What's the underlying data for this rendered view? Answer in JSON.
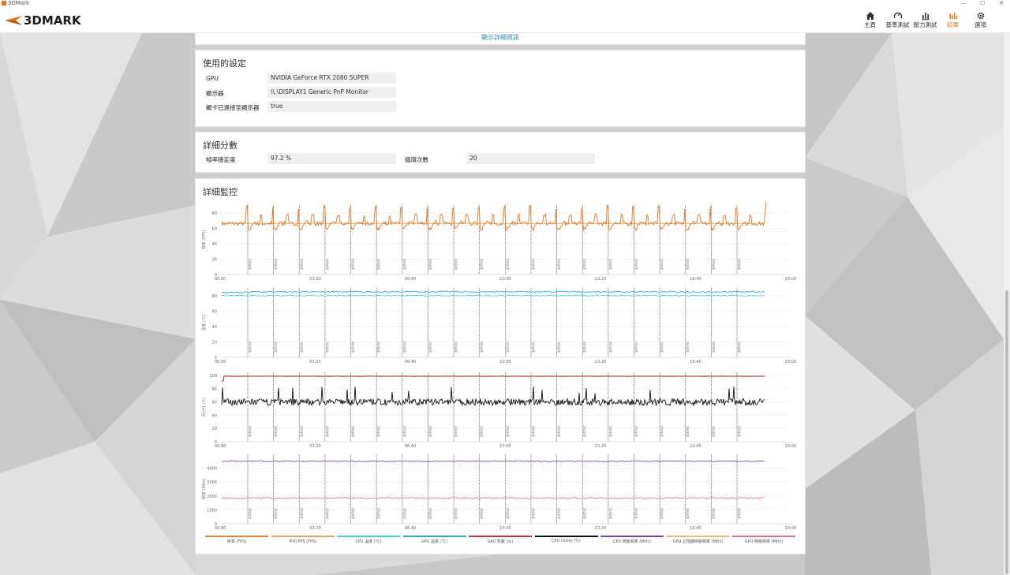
{
  "window": {
    "title": "3DMark"
  },
  "app": {
    "logo_text": "3DMARK"
  },
  "nav": {
    "items": [
      {
        "label": "主頁",
        "icon": "home-icon"
      },
      {
        "label": "基準測試",
        "icon": "benchmark-gauge-icon"
      },
      {
        "label": "壓力測試",
        "icon": "stress-bars-icon"
      },
      {
        "label": "結果",
        "icon": "results-chart-icon",
        "active": true
      },
      {
        "label": "選項",
        "icon": "gear-icon"
      }
    ]
  },
  "top_link": "顯示詳細資訊",
  "settings": {
    "title": "使用的設定",
    "rows": [
      {
        "label": "GPU",
        "value": "NVIDIA GeForce RTX 2080 SUPER"
      },
      {
        "label": "顯示器",
        "value": "\\\\.\\DISPLAY1 Generic PnP Monitor"
      },
      {
        "label": "顯卡已連接至顯示器",
        "value": "true"
      }
    ]
  },
  "scores": {
    "title": "詳細分數",
    "frame_stability_label": "幀率穩定度",
    "frame_stability_value": "97.2 %",
    "loops_label": "循環次數",
    "loops_value": "20"
  },
  "monitoring": {
    "title": "詳細監控",
    "marker_label": "循環測試",
    "colors": {
      "fps": "#e8802a",
      "fps_avg": "#f0a060",
      "cpu_temp": "#45d6c8",
      "gpu_temp": "#2ba8d6",
      "gpu_load": "#c0363b",
      "cpu_util": "#111111",
      "cpu_clock": "#7b45a8",
      "gpu_mem_clock": "#e5c070",
      "gpu_clock": "#e0708a"
    },
    "legend": [
      {
        "label": "幀率 (FPS)",
        "color": "#e8802a"
      },
      {
        "label": "平均 FPS (FPS)",
        "color": "#f0a060"
      },
      {
        "label": "CPU 溫度 (°C)",
        "color": "#45d6c8"
      },
      {
        "label": "GPU 溫度 (°C)",
        "color": "#2ba8d6"
      },
      {
        "label": "GPU 負載 (%)",
        "color": "#c0363b"
      },
      {
        "label": "CPU Utility (%)",
        "color": "#111111"
      },
      {
        "label": "CPU 時脈頻率 (MHz)",
        "color": "#7b45a8"
      },
      {
        "label": "GPU 記憶體時脈頻率 (MHz)",
        "color": "#e5c070"
      },
      {
        "label": "GPU 時脈頻率 (MHz)",
        "color": "#e0708a"
      }
    ]
  },
  "chart_data": [
    {
      "type": "line",
      "ylabel": "幀率 (FPS)",
      "ylim": [
        0,
        90
      ],
      "yticks": [
        0,
        20,
        40,
        60,
        80
      ],
      "xticks": [
        "00:00",
        "03:20",
        "06:40",
        "10:00",
        "13:20",
        "16:40",
        "20:00"
      ],
      "xlim": [
        "00:00",
        "20:00"
      ],
      "loop_markers": 20,
      "series": [
        {
          "name": "幀率 (FPS)",
          "baseline": 68,
          "range": [
            57,
            92
          ]
        },
        {
          "name": "平均 FPS (FPS)",
          "values_constant": 66
        }
      ]
    },
    {
      "type": "line",
      "ylabel": "溫度 (°C)",
      "ylim": [
        0,
        90
      ],
      "yticks": [
        0,
        20,
        40,
        60,
        80
      ],
      "xticks": [
        "00:00",
        "03:20",
        "06:40",
        "10:00",
        "13:20",
        "16:40",
        "20:00"
      ],
      "xlim": [
        "00:00",
        "20:00"
      ],
      "loop_markers": 20,
      "series": [
        {
          "name": "CPU 溫度 (°C)",
          "approx": 80
        },
        {
          "name": "GPU 溫度 (°C)",
          "approx": 85
        }
      ]
    },
    {
      "type": "line",
      "ylabel": "百分比 (%)",
      "ylim": [
        0,
        105
      ],
      "yticks": [
        0,
        20,
        40,
        60,
        80,
        100
      ],
      "xticks": [
        "00:00",
        "03:20",
        "06:40",
        "10:00",
        "13:20",
        "16:40",
        "20:00"
      ],
      "xlim": [
        "00:00",
        "20:00"
      ],
      "loop_markers": 20,
      "series": [
        {
          "name": "GPU 負載 (%)",
          "approx": 99
        },
        {
          "name": "CPU Utility (%)",
          "baseline": 60,
          "range": [
            52,
            85
          ]
        }
      ]
    },
    {
      "type": "line",
      "ylabel": "頻率 (MHz)",
      "ylim": [
        0,
        5000
      ],
      "yticks": [
        0,
        1000,
        2000,
        3000,
        4000
      ],
      "xticks": [
        "00:00",
        "03:20",
        "06:40",
        "10:00",
        "13:20",
        "16:40",
        "20:00"
      ],
      "xlim": [
        "00:00",
        "20:00"
      ],
      "loop_markers": 20,
      "series": [
        {
          "name": "CPU 時脈頻率 (MHz)",
          "approx": 4500
        },
        {
          "name": "GPU 時脈頻率 (MHz)",
          "approx": 1850
        }
      ]
    }
  ]
}
